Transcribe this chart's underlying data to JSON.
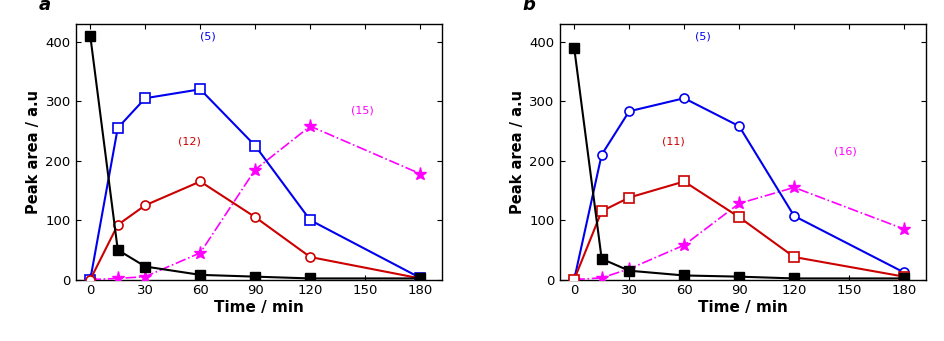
{
  "time": [
    0,
    15,
    30,
    60,
    90,
    120,
    180
  ],
  "a_black": [
    410,
    50,
    22,
    8,
    5,
    2,
    2
  ],
  "a_blue": [
    0,
    255,
    305,
    320,
    225,
    100,
    3
  ],
  "a_red": [
    0,
    92,
    125,
    165,
    105,
    38,
    2
  ],
  "a_magenta": [
    0,
    2,
    5,
    45,
    185,
    258,
    178
  ],
  "b_black": [
    390,
    35,
    15,
    7,
    5,
    2,
    2
  ],
  "b_blue": [
    0,
    210,
    283,
    305,
    258,
    107,
    12
  ],
  "b_red": [
    0,
    115,
    138,
    165,
    105,
    38,
    5
  ],
  "b_magenta": [
    0,
    3,
    18,
    58,
    128,
    155,
    85
  ],
  "ylim": [
    0,
    430
  ],
  "yticks": [
    0,
    100,
    200,
    300,
    400
  ],
  "xticks": [
    0,
    30,
    60,
    90,
    120,
    150,
    180
  ],
  "black_color": "#000000",
  "blue_color": "#0000ee",
  "red_color": "#cc0000",
  "magenta_color": "#ff00ff",
  "ylabel": "Peak area / a.u",
  "xlabel": "Time / min",
  "label_a": "a",
  "label_b": "b"
}
